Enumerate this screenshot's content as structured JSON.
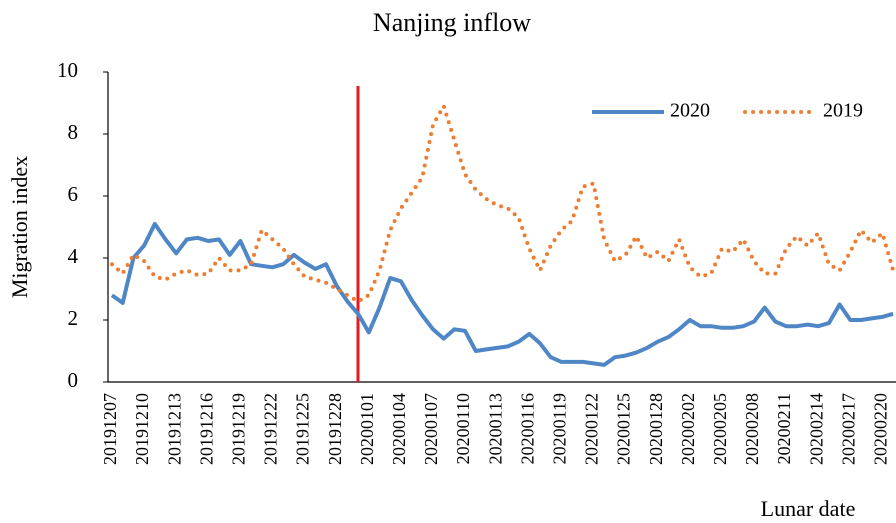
{
  "chart_data": {
    "type": "line",
    "title": "Nanjing inflow",
    "x_label": "Lunar date",
    "y_label": "Migration index",
    "categories": [
      "20191207",
      null,
      null,
      "20191210",
      null,
      null,
      "20191213",
      null,
      null,
      "20191216",
      null,
      null,
      "20191219",
      null,
      null,
      "20191222",
      null,
      null,
      "20191225",
      null,
      null,
      "20191228",
      null,
      null,
      "20200101",
      null,
      null,
      "20200104",
      null,
      null,
      "20200107",
      null,
      null,
      "20200110",
      null,
      null,
      "20200113",
      null,
      null,
      "20200116",
      null,
      null,
      "20200119",
      null,
      null,
      "20200122",
      null,
      null,
      "20200125",
      null,
      null,
      "20200128",
      null,
      null,
      "20200202",
      null,
      null,
      "20200205",
      null,
      null,
      "20200208",
      null,
      null,
      "20200211",
      null,
      null,
      "20200214",
      null,
      null,
      "20200217",
      null,
      null,
      "20200220",
      null
    ],
    "series": [
      {
        "name": "2020",
        "color": "#4f86c6",
        "style": "solid",
        "values": [
          2.8,
          2.55,
          4.0,
          4.4,
          5.1,
          4.6,
          4.15,
          4.6,
          4.65,
          4.55,
          4.6,
          4.1,
          4.55,
          3.8,
          3.75,
          3.7,
          3.8,
          4.1,
          3.85,
          3.65,
          3.8,
          3.1,
          2.6,
          2.2,
          1.6,
          2.4,
          3.35,
          3.25,
          2.65,
          2.15,
          1.7,
          1.4,
          1.7,
          1.65,
          1.0,
          1.05,
          1.1,
          1.15,
          1.3,
          1.55,
          1.25,
          0.8,
          0.65,
          0.65,
          0.65,
          0.6,
          0.55,
          0.8,
          0.85,
          0.95,
          1.1,
          1.3,
          1.45,
          1.7,
          2.0,
          1.8,
          1.8,
          1.75,
          1.75,
          1.8,
          1.95,
          2.4,
          1.95,
          1.8,
          1.8,
          1.85,
          1.8,
          1.9,
          2.5,
          2.0,
          2.0,
          2.05,
          2.1,
          2.2
        ]
      },
      {
        "name": "2019",
        "color": "#ed7d31",
        "style": "dotted",
        "values": [
          3.8,
          3.5,
          4.1,
          3.9,
          3.4,
          3.3,
          3.5,
          3.6,
          3.45,
          3.5,
          4.0,
          3.6,
          3.6,
          3.8,
          4.9,
          4.6,
          4.3,
          3.8,
          3.4,
          3.3,
          3.2,
          3.0,
          2.8,
          2.6,
          2.8,
          3.6,
          4.9,
          5.6,
          6.1,
          6.6,
          8.3,
          8.9,
          7.8,
          6.7,
          6.2,
          5.9,
          5.7,
          5.6,
          5.3,
          4.3,
          3.6,
          4.4,
          4.9,
          5.2,
          6.3,
          6.4,
          4.6,
          3.9,
          4.1,
          4.7,
          4.0,
          4.2,
          3.9,
          4.6,
          3.7,
          3.4,
          3.5,
          4.3,
          4.2,
          4.6,
          3.9,
          3.5,
          3.5,
          4.3,
          4.7,
          4.4,
          4.8,
          3.8,
          3.6,
          4.2,
          4.9,
          4.5,
          4.8,
          3.6
        ]
      }
    ],
    "ylim": [
      0,
      10
    ],
    "yticks": [
      0,
      2,
      4,
      6,
      8,
      10
    ],
    "grid": false,
    "legend": "upper right"
  }
}
